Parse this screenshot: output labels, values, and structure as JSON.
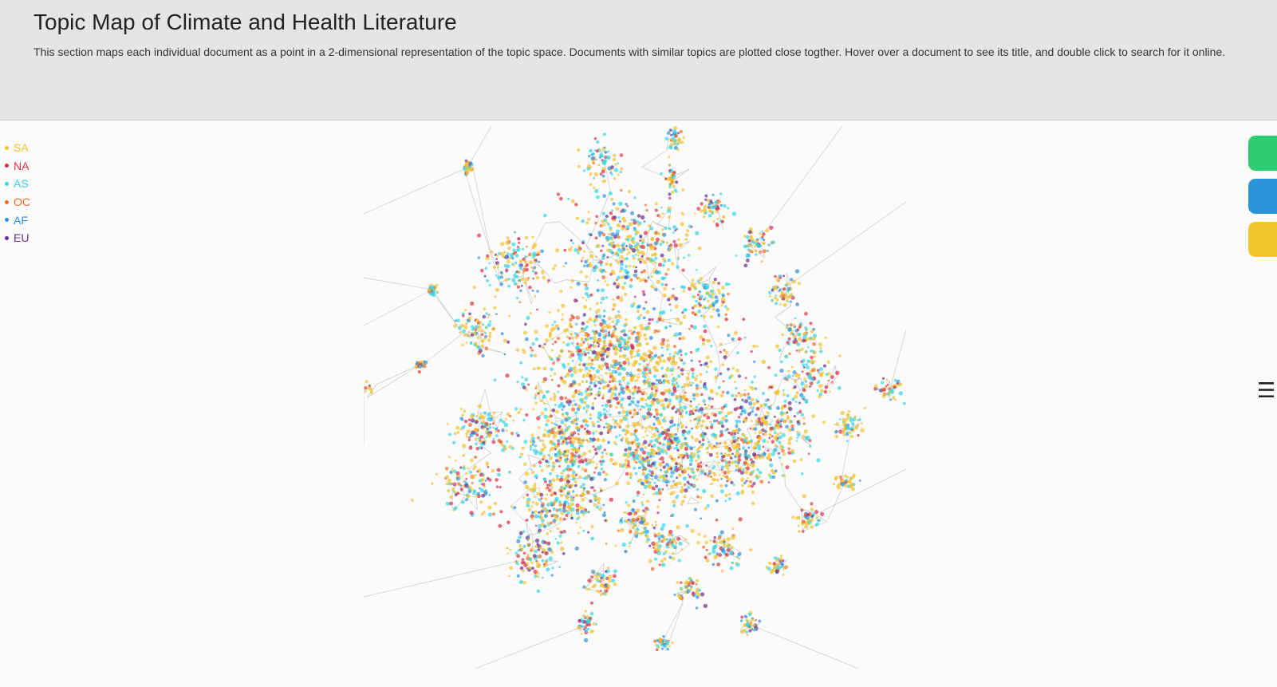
{
  "header": {
    "title": "Topic Map of Climate and Health Literature",
    "description": "This section maps each individual document as a point in a 2-dimensional representation of the topic space. Documents with similar topics are plotted close togther. Hover over a document to see its title, and double click to search for it online."
  },
  "legend": {
    "items": [
      {
        "label": "SA",
        "color": "#f2c12e"
      },
      {
        "label": "NA",
        "color": "#dc2f4a"
      },
      {
        "label": "AS",
        "color": "#33d4e6"
      },
      {
        "label": "OC",
        "color": "#ef6a28"
      },
      {
        "label": "AF",
        "color": "#2f8ee0"
      },
      {
        "label": "EU",
        "color": "#6a2d8f"
      }
    ]
  },
  "side_tabs": [
    {
      "name": "side-tab-green",
      "color": "#2ecc71"
    },
    {
      "name": "side-tab-blue",
      "color": "#2a94d9"
    },
    {
      "name": "side-tab-yellow",
      "color": "#f3c52f"
    }
  ],
  "menu": {
    "icon": "hamburger-menu-icon",
    "glyph": "☰"
  }
}
